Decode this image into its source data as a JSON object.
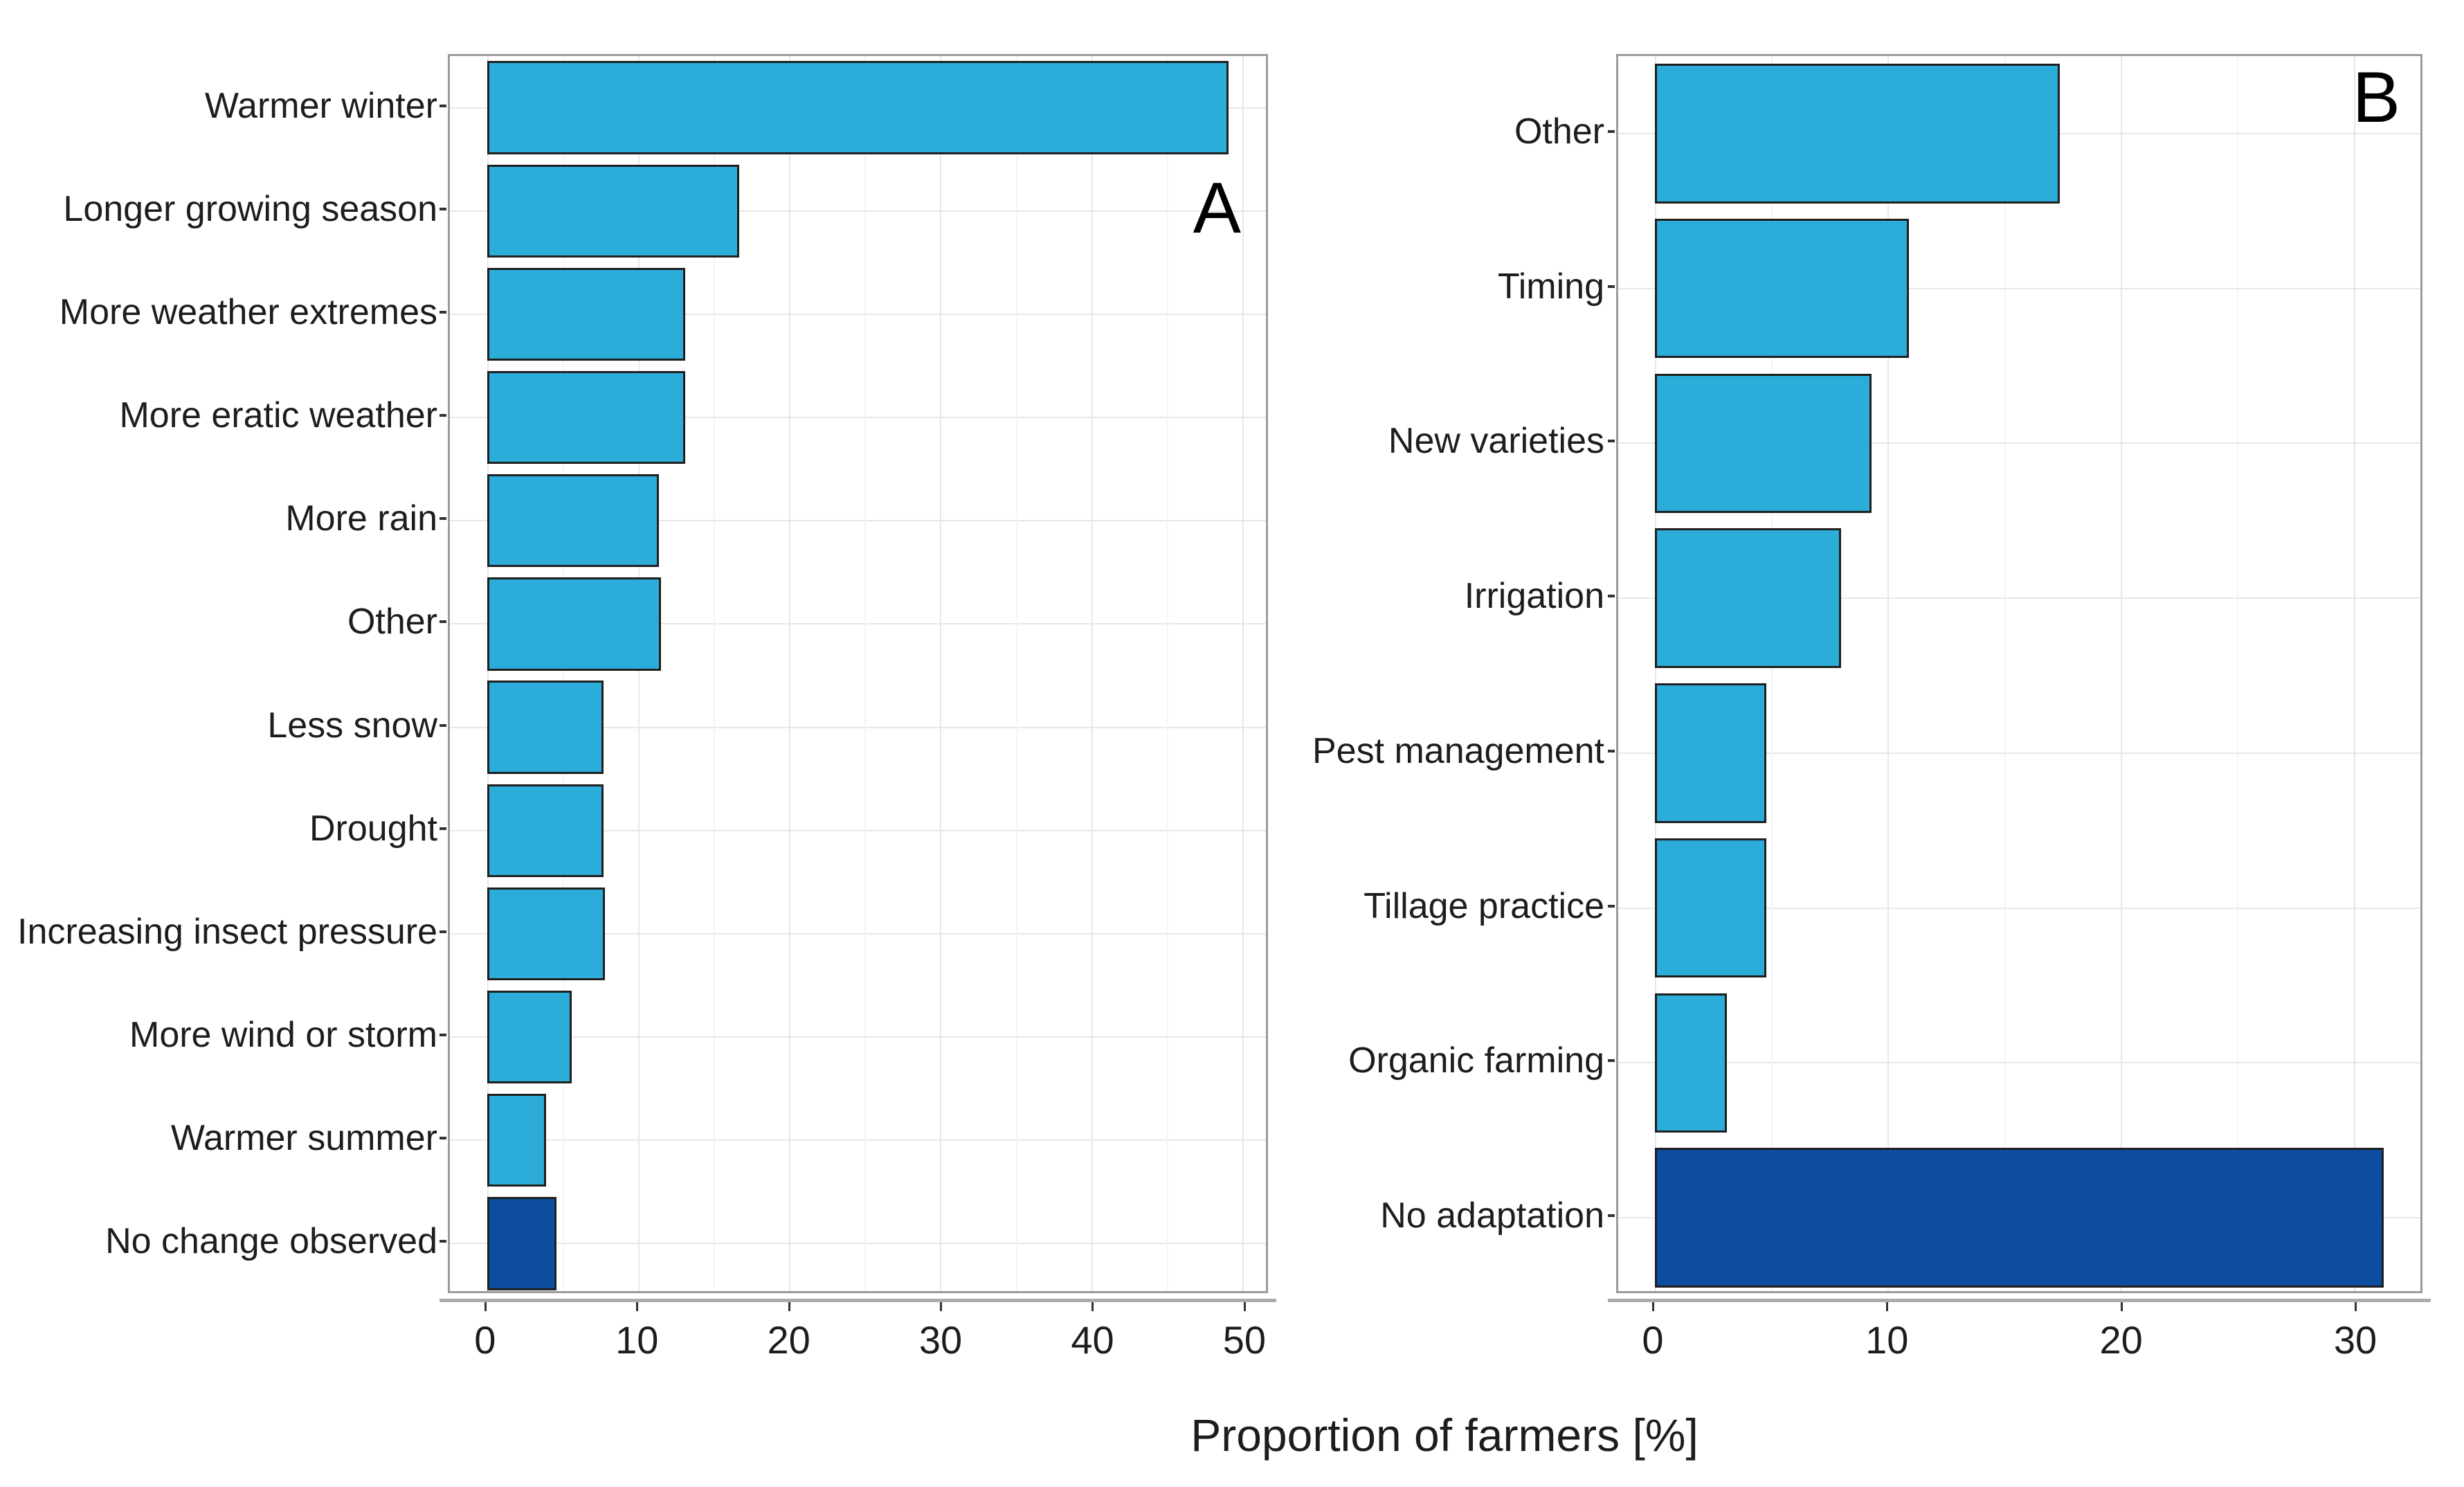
{
  "figure": {
    "xlabel": "Proportion of farmers [%]",
    "colors": {
      "bar_light": "#2CACD8",
      "bar_dark": "#0C4DA0",
      "bar_border": "#1f1f1f",
      "panel_border": "#9b9b9b",
      "grid_major": "#e7e7e7",
      "grid_minor": "#f4f4f4",
      "axis_line": "#ababab",
      "tick_mark": "#333333",
      "text": "#1d1d1d"
    }
  },
  "chart_data": [
    {
      "type": "bar",
      "orientation": "horizontal",
      "panel_label": "A",
      "title": "",
      "xlabel": "Proportion of farmers [%]",
      "ylabel": "",
      "categories": [
        "Warmer winter",
        "Longer growing season",
        "More weather extremes",
        "More eratic weather",
        "More rain",
        "Other",
        "Less snow",
        "Drought",
        "Increasing insect pressure",
        "More wind or storm",
        "Warmer summer",
        "No change observed"
      ],
      "values": [
        49.1,
        16.7,
        13.1,
        13.1,
        11.4,
        11.5,
        7.7,
        7.7,
        7.8,
        5.6,
        3.9,
        4.6
      ],
      "dark_categories": [
        "No change observed"
      ],
      "xticks_major": [
        0,
        10,
        20,
        30,
        40,
        50
      ],
      "xticks_minor": [
        5,
        15,
        25,
        35,
        45
      ],
      "xlim": [
        -2.45,
        51.55
      ],
      "grid": true,
      "legend": false
    },
    {
      "type": "bar",
      "orientation": "horizontal",
      "panel_label": "B",
      "title": "",
      "xlabel": "Proportion of farmers [%]",
      "ylabel": "",
      "categories": [
        "Other",
        "Timing",
        "New varieties",
        "Irrigation",
        "Pest management",
        "Tillage practice",
        "Organic farming",
        "No adaptation"
      ],
      "values": [
        17.4,
        10.9,
        9.3,
        8.0,
        4.8,
        4.8,
        3.1,
        31.3
      ],
      "dark_categories": [
        "No adaptation"
      ],
      "xticks_major": [
        0,
        10,
        20,
        30
      ],
      "xticks_minor": [
        5,
        15,
        25
      ],
      "xlim": [
        -1.57,
        32.87
      ],
      "grid": true,
      "legend": false
    }
  ]
}
